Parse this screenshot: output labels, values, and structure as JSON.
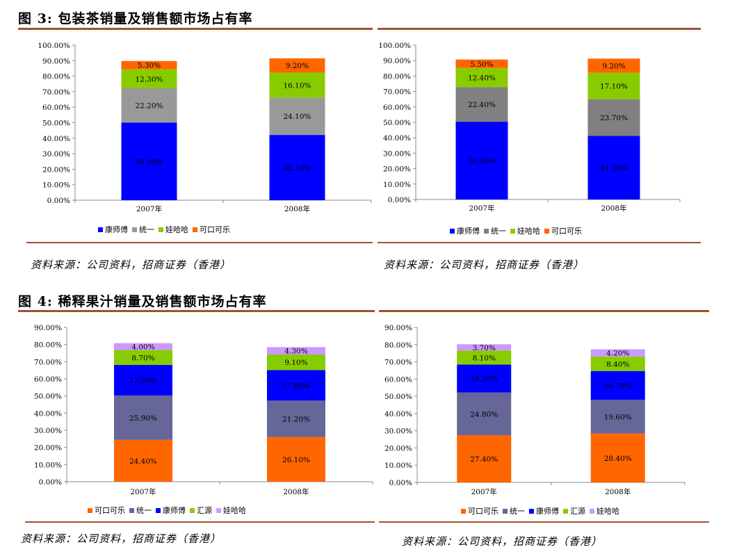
{
  "fig3": {
    "title": "图 3: 包装茶销量及销售额市场占有率",
    "source_left": "资料来源：公司资料，招商证券（香港）",
    "source_right": "资料来源：公司资料，招商证券（香港）"
  },
  "fig4": {
    "title": "图 4: 稀释果汁销量及销售额市场占有率",
    "source_left": "资料来源：公司资料，招商证券（香港）",
    "source_right": "资料来源：公司资料，招商证券（香港）"
  },
  "colors": {
    "rule": "#a0522d",
    "blue": "#0000ff",
    "gray": "#999999",
    "green": "#88cc00",
    "orange": "#ff6600",
    "slate": "#666699",
    "violet": "#cc99ff"
  },
  "chart_data": [
    {
      "type": "bar",
      "stacked": true,
      "categories": [
        "2007年",
        "2008年"
      ],
      "ylim": [
        0,
        100
      ],
      "ystep": 10,
      "ticks": [
        "0.00%",
        "10.00%",
        "20.00%",
        "30.00%",
        "40.00%",
        "50.00%",
        "60.00%",
        "70.00%",
        "80.00%",
        "90.00%",
        "100.00%"
      ],
      "series": [
        {
          "name": "康师傅",
          "color": "#0000ff",
          "values": [
            50.0,
            42.1
          ],
          "labels": [
            "50.00%",
            "42.10%"
          ]
        },
        {
          "name": "统一",
          "color": "#999999",
          "values": [
            22.2,
            24.1
          ],
          "labels": [
            "22.20%",
            "24.10%"
          ]
        },
        {
          "name": "娃哈哈",
          "color": "#88cc00",
          "values": [
            12.3,
            16.1
          ],
          "labels": [
            "12.30%",
            "16.10%"
          ]
        },
        {
          "name": "可口可乐",
          "color": "#ff6600",
          "values": [
            5.3,
            9.2
          ],
          "labels": [
            "5.30%",
            "9.20%"
          ]
        }
      ]
    },
    {
      "type": "bar",
      "stacked": true,
      "categories": [
        "2007年",
        "2008年"
      ],
      "ylim": [
        0,
        100
      ],
      "ystep": 10,
      "ticks": [
        "0.00%",
        "10.00%",
        "20.00%",
        "30.00%",
        "40.00%",
        "50.00%",
        "60.00%",
        "70.00%",
        "80.00%",
        "90.00%",
        "100.00%"
      ],
      "series": [
        {
          "name": "康师傅",
          "color": "#0000ff",
          "values": [
            50.4,
            41.3
          ],
          "labels": [
            "50.40%",
            "41.30%"
          ]
        },
        {
          "name": "统一",
          "color": "#808080",
          "values": [
            22.4,
            23.7
          ],
          "labels": [
            "22.40%",
            "23.70%"
          ]
        },
        {
          "name": "娃哈哈",
          "color": "#88cc00",
          "values": [
            12.4,
            17.1
          ],
          "labels": [
            "12.40%",
            "17.10%"
          ]
        },
        {
          "name": "可口可乐",
          "color": "#ff6600",
          "values": [
            5.5,
            9.2
          ],
          "labels": [
            "5.50%",
            "9.20%"
          ]
        }
      ]
    },
    {
      "type": "bar",
      "stacked": true,
      "categories": [
        "2007年",
        "2008年"
      ],
      "ylim": [
        0,
        90
      ],
      "ystep": 10,
      "ticks": [
        "0.00%",
        "10.00%",
        "20.00%",
        "30.00%",
        "40.00%",
        "50.00%",
        "60.00%",
        "70.00%",
        "80.00%",
        "90.00%"
      ],
      "series": [
        {
          "name": "可口可乐",
          "color": "#ff6600",
          "values": [
            24.4,
            26.1
          ],
          "labels": [
            "24.40%",
            "26.10%"
          ]
        },
        {
          "name": "统一",
          "color": "#666699",
          "values": [
            25.9,
            21.2
          ],
          "labels": [
            "25.90%",
            "21.20%"
          ]
        },
        {
          "name": "康师傅",
          "color": "#0000ff",
          "values": [
            17.8,
            17.8
          ],
          "labels": [
            "17.80%",
            "17.80%"
          ]
        },
        {
          "name": "汇源",
          "color": "#88cc00",
          "values": [
            8.7,
            9.1
          ],
          "labels": [
            "8.70%",
            "9.10%"
          ]
        },
        {
          "name": "娃哈哈",
          "color": "#cc99ff",
          "values": [
            4.0,
            4.3
          ],
          "labels": [
            "4.00%",
            "4.30%"
          ]
        }
      ]
    },
    {
      "type": "bar",
      "stacked": true,
      "categories": [
        "2007年",
        "2008年"
      ],
      "ylim": [
        0,
        90
      ],
      "ystep": 10,
      "ticks": [
        "0.00%",
        "10.00%",
        "20.00%",
        "30.00%",
        "40.00%",
        "50.00%",
        "60.00%",
        "70.00%",
        "80.00%",
        "90.00%"
      ],
      "series": [
        {
          "name": "可口可乐",
          "color": "#ff6600",
          "values": [
            27.4,
            28.4
          ],
          "labels": [
            "27.40%",
            "28.40%"
          ]
        },
        {
          "name": "统一",
          "color": "#666699",
          "values": [
            24.8,
            19.6
          ],
          "labels": [
            "24.80%",
            "19.60%"
          ]
        },
        {
          "name": "康师傅",
          "color": "#0000ff",
          "values": [
            16.2,
            16.7
          ],
          "labels": [
            "16.20%",
            "16.70%"
          ]
        },
        {
          "name": "汇源",
          "color": "#88cc00",
          "values": [
            8.1,
            8.4
          ],
          "labels": [
            "8.10%",
            "8.40%"
          ]
        },
        {
          "name": "娃哈哈",
          "color": "#cc99ff",
          "values": [
            3.7,
            4.2
          ],
          "labels": [
            "3.70%",
            "4.20%"
          ]
        }
      ]
    }
  ]
}
